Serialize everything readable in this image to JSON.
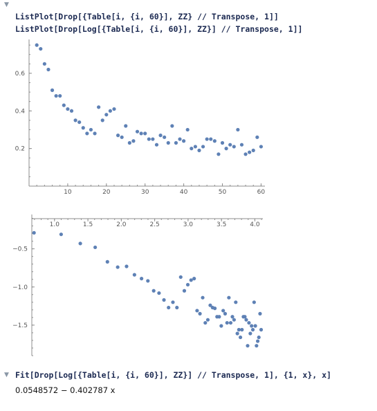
{
  "cells": {
    "input1": {
      "line1": "ListPlot[Drop[{Table[i, {i, 60}], ZZ} // Transpose, 1]]",
      "line2": "ListPlot[Drop[Log[{Table[i, {i, 60}], ZZ}] // Transpose, 1]]"
    },
    "input2": {
      "code": "Fit[Drop[Log[{Table[i, {i, 60}], ZZ}] // Transpose, 1], {1, x}, x]",
      "output": "0.0548572 − 0.402787 x"
    }
  },
  "icons": {
    "cell_toggle_top": "triangle-down-icon",
    "cell_toggle_fit": "triangle-right-icon"
  },
  "colors": {
    "points": "#5e81b5",
    "code": "#1c2a52"
  },
  "chart_data": [
    {
      "type": "scatter",
      "x_ticks": [
        "10",
        "20",
        "30",
        "40",
        "50",
        "60"
      ],
      "y_ticks": [
        "0.2",
        "0.4",
        "0.6"
      ],
      "xlim": [
        0,
        61
      ],
      "ylim": [
        0,
        0.78
      ],
      "x": [
        2,
        3,
        4,
        5,
        6,
        7,
        8,
        9,
        10,
        11,
        12,
        13,
        14,
        15,
        16,
        17,
        18,
        19,
        20,
        21,
        22,
        23,
        24,
        25,
        26,
        27,
        28,
        29,
        30,
        31,
        32,
        33,
        34,
        35,
        36,
        37,
        38,
        39,
        40,
        41,
        42,
        43,
        44,
        45,
        46,
        47,
        48,
        49,
        50,
        51,
        52,
        53,
        54,
        55,
        56,
        57,
        58,
        59,
        60
      ],
      "y": [
        0.75,
        0.73,
        0.65,
        0.62,
        0.51,
        0.48,
        0.48,
        0.43,
        0.41,
        0.4,
        0.35,
        0.34,
        0.31,
        0.28,
        0.3,
        0.28,
        0.42,
        0.35,
        0.38,
        0.4,
        0.41,
        0.27,
        0.26,
        0.32,
        0.23,
        0.24,
        0.29,
        0.28,
        0.28,
        0.25,
        0.25,
        0.22,
        0.27,
        0.26,
        0.23,
        0.32,
        0.23,
        0.25,
        0.24,
        0.3,
        0.2,
        0.21,
        0.19,
        0.21,
        0.25,
        0.25,
        0.24,
        0.17,
        0.23,
        0.2,
        0.22,
        0.21,
        0.3,
        0.22,
        0.17,
        0.18,
        0.19,
        0.26,
        0.21
      ]
    },
    {
      "type": "scatter",
      "x_ticks": [
        "1.0",
        "1.5",
        "2.0",
        "2.5",
        "3.0",
        "3.5",
        "4.0"
      ],
      "y_ticks": [
        "-0.5",
        "-1.0",
        "-1.5"
      ],
      "xlim": [
        0.66,
        4.12
      ],
      "ylim": [
        -1.9,
        -0.05
      ],
      "x": [
        0.693,
        1.099,
        1.386,
        1.609,
        1.792,
        1.946,
        2.079,
        2.197,
        2.303,
        2.398,
        2.485,
        2.565,
        2.639,
        2.708,
        2.773,
        2.833,
        2.89,
        2.944,
        2.996,
        3.045,
        3.091,
        3.135,
        3.178,
        3.219,
        3.258,
        3.296,
        3.332,
        3.367,
        3.401,
        3.434,
        3.466,
        3.497,
        3.526,
        3.555,
        3.584,
        3.611,
        3.638,
        3.664,
        3.689,
        3.714,
        3.738,
        3.761,
        3.784,
        3.807,
        3.829,
        3.85,
        3.871,
        3.892,
        3.912,
        3.932,
        3.951,
        3.97,
        3.989,
        4.007,
        4.025,
        4.043,
        4.06,
        4.078,
        4.094
      ],
      "y": [
        -0.29,
        -0.31,
        -0.43,
        -0.48,
        -0.67,
        -0.74,
        -0.73,
        -0.84,
        -0.89,
        -0.92,
        -1.05,
        -1.08,
        -1.17,
        -1.27,
        -1.2,
        -1.27,
        -0.87,
        -1.05,
        -0.97,
        -0.91,
        -0.89,
        -1.31,
        -1.35,
        -1.14,
        -1.47,
        -1.43,
        -1.24,
        -1.27,
        -1.28,
        -1.39,
        -1.39,
        -1.51,
        -1.31,
        -1.35,
        -1.47,
        -1.14,
        -1.47,
        -1.39,
        -1.43,
        -1.2,
        -1.61,
        -1.56,
        -1.66,
        -1.56,
        -1.39,
        -1.39,
        -1.43,
        -1.77,
        -1.47,
        -1.61,
        -1.51,
        -1.56,
        -1.2,
        -1.51,
        -1.77,
        -1.71,
        -1.66,
        -1.35,
        -1.56
      ]
    }
  ]
}
